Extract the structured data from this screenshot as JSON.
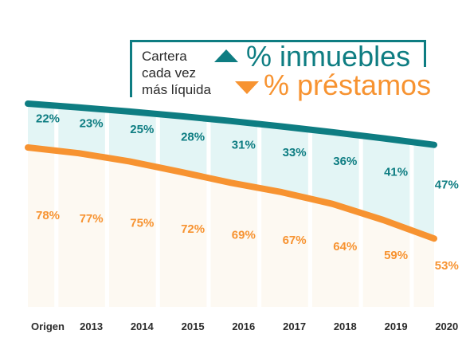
{
  "legend": {
    "caption_lines": [
      "Cartera",
      "cada vez",
      "más líquida"
    ],
    "series_labels": [
      "% inmuebles",
      "% préstamos"
    ],
    "icons": [
      "triangle-up-icon",
      "triangle-down-icon"
    ]
  },
  "colors": {
    "inmuebles": "#0e7d82",
    "inmuebles_fill": "#e3f5f5",
    "prestamos": "#f79331",
    "prestamos_fill": "#fdf9f2",
    "band": "#ffffff",
    "text_dark": "#2b2b2b"
  },
  "chart_data": {
    "type": "area",
    "stacked": true,
    "categories": [
      "Origen",
      "2013",
      "2014",
      "2015",
      "2016",
      "2017",
      "2018",
      "2019",
      "2020"
    ],
    "series": [
      {
        "name": "% inmuebles",
        "values": [
          22,
          23,
          25,
          28,
          31,
          33,
          36,
          41,
          47
        ]
      },
      {
        "name": "% préstamos",
        "values": [
          78,
          77,
          75,
          72,
          69,
          67,
          64,
          59,
          53
        ]
      }
    ],
    "data_labels": {
      "inmuebles": [
        "22%",
        "23%",
        "25%",
        "28%",
        "31%",
        "33%",
        "36%",
        "41%",
        "47%"
      ],
      "prestamos": [
        "78%",
        "77%",
        "75%",
        "72%",
        "69%",
        "67%",
        "64%",
        "59%",
        "53%"
      ]
    },
    "ylim": [
      0,
      100
    ],
    "grid": false,
    "legend_position": "top-right"
  }
}
